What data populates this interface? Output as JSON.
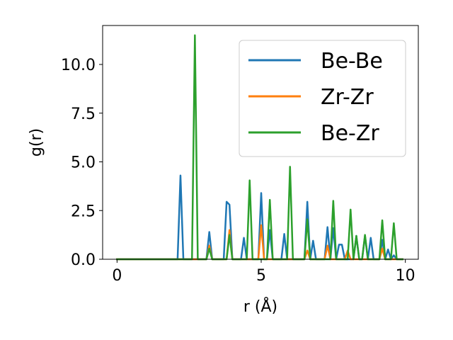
{
  "chart_data": {
    "type": "line",
    "xlabel": "r (Å)",
    "ylabel": "g(r)",
    "xlim": [
      -0.5,
      10.45
    ],
    "ylim": [
      0,
      12.0
    ],
    "xticks": [
      0,
      5,
      10
    ],
    "xtick_labels": [
      "0",
      "5",
      "10"
    ],
    "yticks": [
      0.0,
      2.5,
      5.0,
      7.5,
      10.0
    ],
    "ytick_labels": [
      "0.0",
      "2.5",
      "5.0",
      "7.5",
      "10.0"
    ],
    "grid": false,
    "legend_position": "top-right",
    "series": [
      {
        "name": "Be-Be",
        "color": "#1f77b4",
        "x": [
          0,
          2.1,
          2.2,
          2.3,
          3.1,
          3.2,
          3.3,
          3.6,
          3.7,
          3.8,
          3.9,
          4.0,
          4.1,
          4.2,
          4.3,
          4.4,
          4.5,
          4.6,
          4.7,
          4.8,
          4.9,
          5.0,
          5.1,
          5.2,
          5.3,
          5.4,
          5.5,
          5.6,
          5.7,
          5.8,
          5.9,
          6.0,
          6.1,
          6.2,
          6.3,
          6.4,
          6.5,
          6.6,
          6.7,
          6.8,
          6.9,
          7.0,
          7.1,
          7.2,
          7.3,
          7.4,
          7.5,
          7.6,
          7.7,
          7.8,
          7.9,
          8.0,
          8.1,
          8.2,
          8.3,
          8.4,
          8.5,
          8.6,
          8.7,
          8.8,
          8.9,
          9.0,
          9.1,
          9.2,
          9.3,
          9.4,
          9.5,
          9.6,
          9.7,
          9.8,
          9.9
        ],
        "values": [
          0,
          0,
          4.3,
          0,
          0,
          1.4,
          0,
          0,
          0,
          2.95,
          2.8,
          0,
          0,
          0,
          0,
          1.1,
          0,
          0,
          0,
          0,
          0,
          3.4,
          0,
          0,
          1.5,
          0,
          0,
          0,
          0,
          1.3,
          0,
          0,
          0,
          0,
          0,
          0,
          0,
          2.95,
          0,
          0.95,
          0,
          0,
          0,
          0,
          1.65,
          0,
          1.6,
          0,
          0.75,
          0.75,
          0,
          0,
          0,
          0,
          1.2,
          0,
          0,
          1.2,
          0,
          1.1,
          0,
          0,
          0,
          1.0,
          0,
          0.5,
          0,
          0.2,
          0,
          0,
          0
        ]
      },
      {
        "name": "Zr-Zr",
        "color": "#ff7f0e",
        "x": [
          0,
          3.1,
          3.2,
          3.3,
          3.8,
          3.9,
          4.0,
          4.9,
          5.0,
          5.1,
          6.5,
          6.6,
          6.7,
          7.2,
          7.3,
          7.4,
          7.9,
          8.0,
          8.1,
          9.1,
          9.2,
          9.3,
          9.9
        ],
        "values": [
          0,
          0,
          0.7,
          0,
          0,
          1.5,
          0,
          0,
          1.75,
          0,
          0,
          0.45,
          0,
          0,
          0.7,
          0,
          0,
          0.45,
          0,
          0,
          0.55,
          0,
          0
        ]
      },
      {
        "name": "Be-Zr",
        "color": "#2ca02c",
        "x": [
          0,
          2.6,
          2.7,
          2.8,
          3.1,
          3.2,
          3.3,
          3.8,
          3.9,
          4.0,
          4.5,
          4.6,
          4.7,
          5.2,
          5.3,
          5.4,
          5.9,
          6.0,
          6.1,
          6.5,
          6.6,
          6.7,
          7.4,
          7.5,
          7.6,
          8.0,
          8.1,
          8.2,
          8.3,
          8.4,
          8.5,
          8.6,
          8.7,
          9.1,
          9.2,
          9.3,
          9.5,
          9.6,
          9.7,
          9.8,
          9.9
        ],
        "values": [
          0,
          0,
          11.5,
          0,
          0,
          0.55,
          0,
          0,
          1.25,
          0,
          0,
          4.05,
          0,
          0,
          3.05,
          0,
          0,
          4.75,
          0,
          0,
          2.05,
          0,
          0,
          3.0,
          0,
          0,
          2.55,
          0,
          1.2,
          0,
          0,
          1.25,
          0,
          0,
          2.0,
          0,
          0,
          1.85,
          0,
          0,
          0
        ]
      }
    ]
  }
}
